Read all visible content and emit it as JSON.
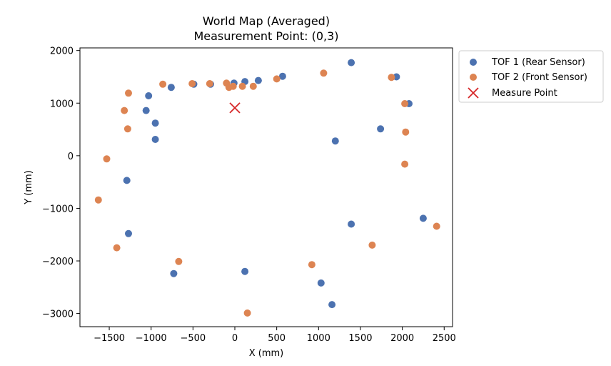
{
  "chart_data": {
    "type": "scatter",
    "title": "World Map (Averaged)",
    "subtitle": "Measurement Point: (0,3)",
    "xlabel": "X (mm)",
    "ylabel": "Y (mm)",
    "xlim": [
      -1850,
      2600
    ],
    "ylim": [
      -3250,
      2050
    ],
    "xticks": [
      -1500,
      -1000,
      -500,
      0,
      500,
      1000,
      1500,
      2000,
      2500
    ],
    "xtick_labels": [
      "−1500",
      "−1000",
      "−500",
      "0",
      "500",
      "1000",
      "1500",
      "2000",
      "2500"
    ],
    "yticks": [
      2000,
      1000,
      0,
      -1000,
      -2000,
      -3000
    ],
    "ytick_labels": [
      "2000",
      "1000",
      "0",
      "−1000",
      "−2000",
      "−3000"
    ],
    "grid": false,
    "legend_position": "outside-right",
    "series": [
      {
        "name": "TOF 1 (Rear Sensor)",
        "color": "#4c72b0",
        "marker": "circle",
        "points": [
          [
            -1060,
            860
          ],
          [
            -1030,
            1140
          ],
          [
            -950,
            620
          ],
          [
            -950,
            310
          ],
          [
            -760,
            1300
          ],
          [
            -490,
            1360
          ],
          [
            -290,
            1360
          ],
          [
            -10,
            1380
          ],
          [
            120,
            1410
          ],
          [
            280,
            1430
          ],
          [
            570,
            1510
          ],
          [
            1390,
            1770
          ],
          [
            1200,
            280
          ],
          [
            1740,
            510
          ],
          [
            1930,
            1500
          ],
          [
            2080,
            990
          ],
          [
            -1290,
            -470
          ],
          [
            -1270,
            -1480
          ],
          [
            -730,
            -2240
          ],
          [
            120,
            -2200
          ],
          [
            1390,
            -1300
          ],
          [
            1030,
            -2420
          ],
          [
            1160,
            -2830
          ],
          [
            2250,
            -1190
          ]
        ]
      },
      {
        "name": "TOF 2 (Front Sensor)",
        "color": "#dd8452",
        "marker": "circle",
        "points": [
          [
            -1270,
            1190
          ],
          [
            -1320,
            860
          ],
          [
            -1280,
            510
          ],
          [
            -860,
            1360
          ],
          [
            -510,
            1370
          ],
          [
            -300,
            1370
          ],
          [
            -100,
            1380
          ],
          [
            -70,
            1300
          ],
          [
            -20,
            1320
          ],
          [
            90,
            1320
          ],
          [
            220,
            1320
          ],
          [
            500,
            1460
          ],
          [
            1060,
            1570
          ],
          [
            1870,
            1490
          ],
          [
            2030,
            990
          ],
          [
            2040,
            450
          ],
          [
            2030,
            -160
          ],
          [
            -1530,
            -60
          ],
          [
            -1630,
            -840
          ],
          [
            -1410,
            -1750
          ],
          [
            -670,
            -2010
          ],
          [
            150,
            -2990
          ],
          [
            920,
            -2070
          ],
          [
            1640,
            -1700
          ],
          [
            2410,
            -1340
          ]
        ]
      }
    ],
    "measure_point": {
      "name": "Measure Point",
      "color": "#d62728",
      "marker": "x",
      "x": 0,
      "y": 910
    }
  }
}
